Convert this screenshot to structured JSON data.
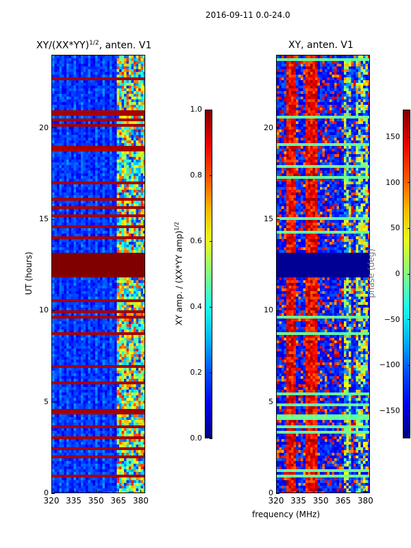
{
  "figure_title": "2016-09-11 0.0-24.0",
  "chart_data": [
    {
      "type": "heatmap",
      "title_main": "XY/(XX*YY)",
      "title_sup": "1/2",
      "title_tail": ", anten. V1",
      "ylabel": "UT (hours)",
      "xlim": [
        320,
        383
      ],
      "ylim": [
        0,
        24
      ],
      "xticks": [
        320,
        335,
        350,
        365,
        380
      ],
      "yticks": [
        0,
        5,
        10,
        15,
        20
      ],
      "colorbar": {
        "label_main": "XY amp. / (XX*YY amp)",
        "label_sup": "1/2",
        "range": [
          0.0,
          1.0
        ],
        "ticks": [
          "0.0",
          "0.2",
          "0.4",
          "0.6",
          "0.8",
          "1.0"
        ],
        "tick_values": [
          0.0,
          0.2,
          0.4,
          0.6,
          0.8,
          1.0
        ],
        "colormap": "jet"
      },
      "flagged_band_ut": [
        12.0,
        13.3
      ],
      "flagged_value": 1.0,
      "background_value": 0.12
    },
    {
      "type": "heatmap",
      "title": "XY, anten. V1",
      "xlabel": "frequency (MHz)",
      "xlim": [
        320,
        383
      ],
      "ylim": [
        0,
        24
      ],
      "xticks": [
        320,
        335,
        350,
        365,
        380
      ],
      "yticks": [
        0,
        5,
        10,
        15,
        20
      ],
      "colorbar": {
        "label": "phase (deg)",
        "range": [
          -180,
          180
        ],
        "ticks": [
          "−150",
          "−100",
          "−50",
          "0",
          "50",
          "100",
          "150"
        ],
        "tick_values": [
          -150,
          -100,
          -50,
          0,
          50,
          100,
          150
        ],
        "colormap": "jet"
      },
      "flagged_band_ut": [
        12.0,
        13.3
      ],
      "flagged_value": -180
    }
  ]
}
